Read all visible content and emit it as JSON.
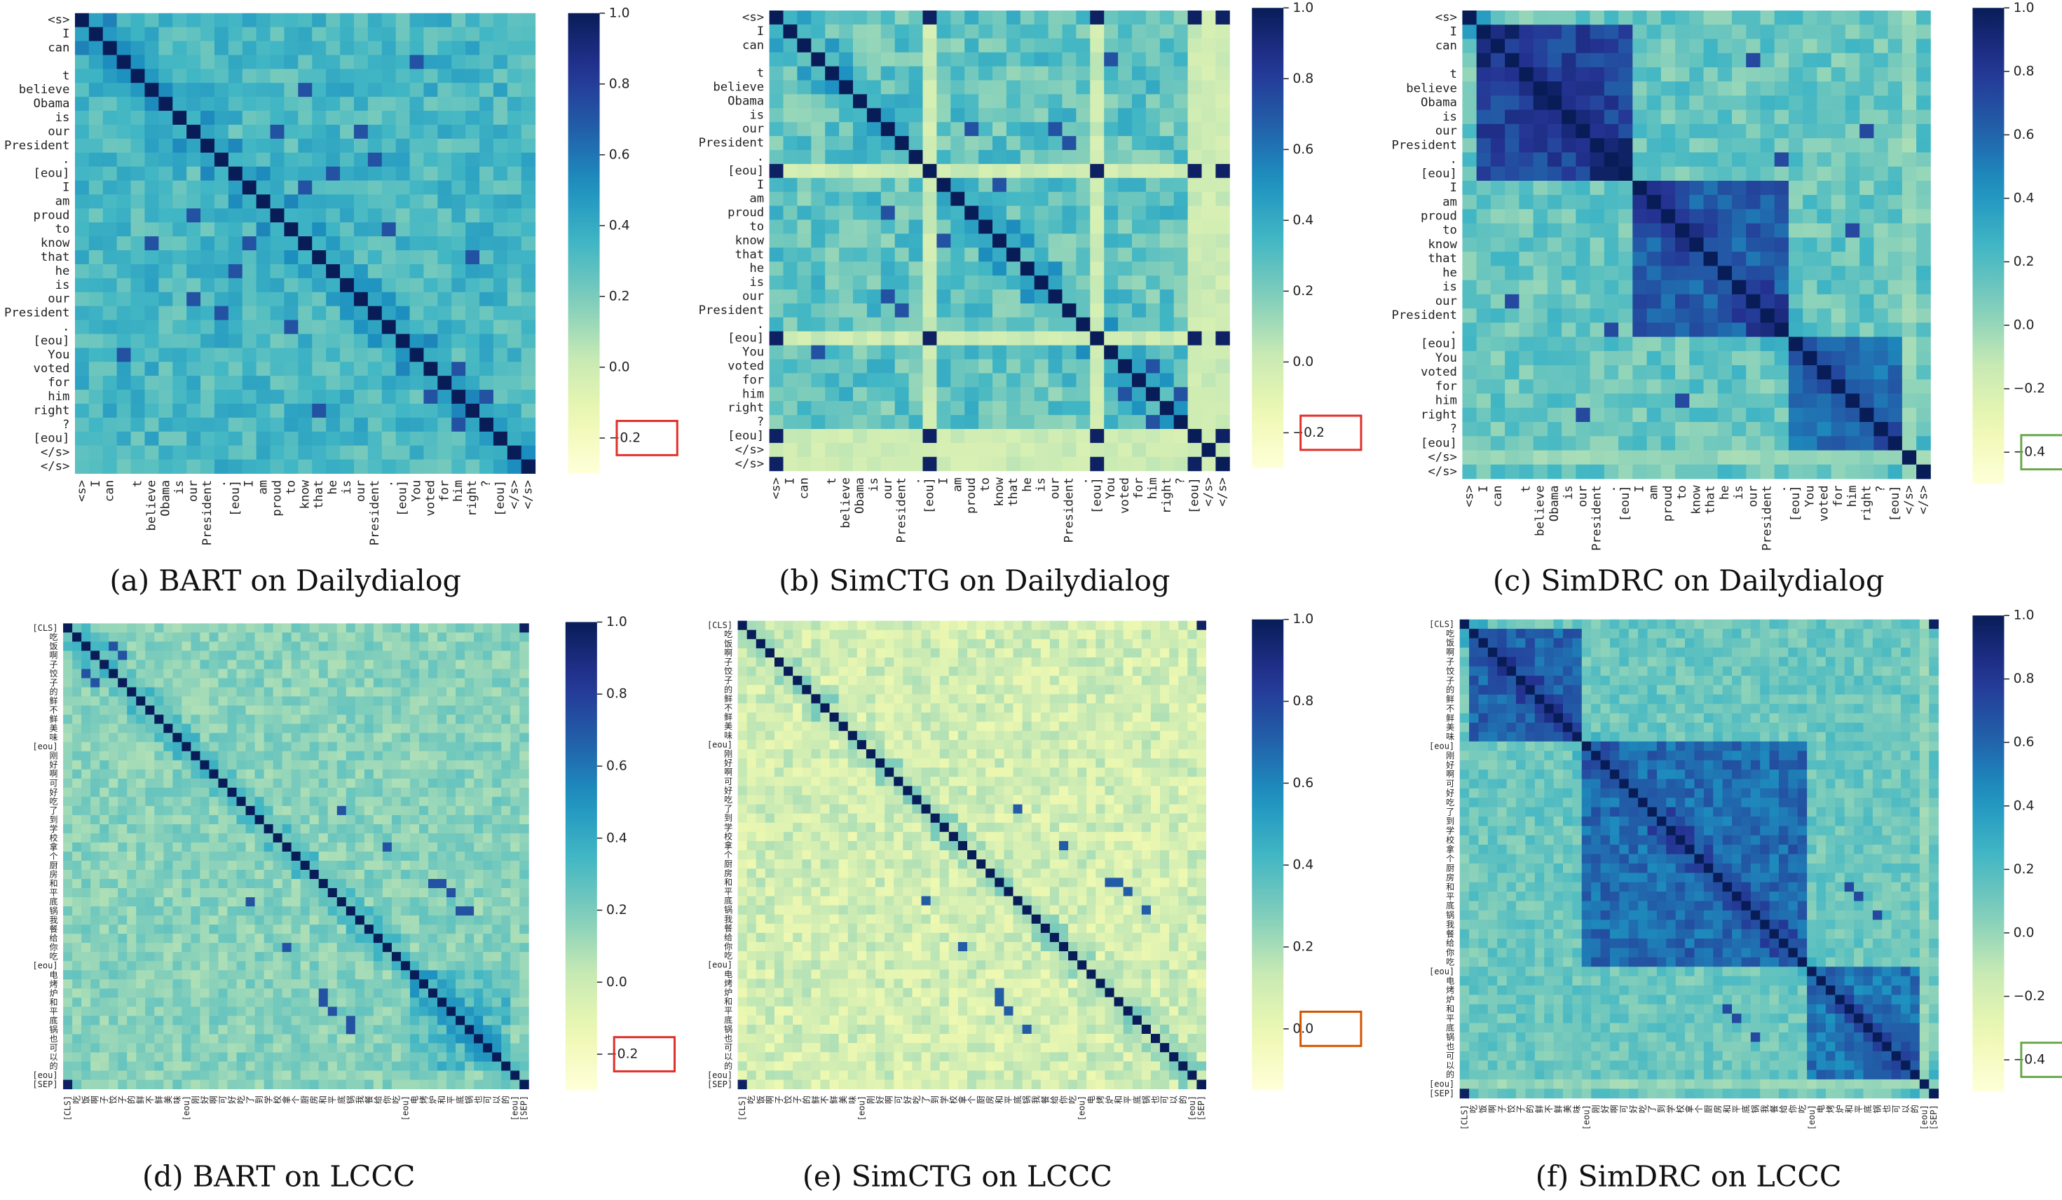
{
  "chart_data": [
    {
      "id": "a",
      "type": "heatmap",
      "caption": "(a) BART on Dailydialog",
      "tokens": [
        "<s>",
        "I",
        "can",
        "",
        "t",
        "believe",
        "Obama",
        "is",
        "our",
        "President",
        ".",
        "[eou]",
        "I",
        "am",
        "proud",
        "to",
        "know",
        "that",
        "he",
        "is",
        "our",
        "President",
        ".",
        "[eou]",
        "You",
        "voted",
        "for",
        "him",
        "right",
        "?",
        "[eou]",
        "</s>",
        "</s>"
      ],
      "colorbar": {
        "vmin": -0.3,
        "vmax": 1.0,
        "ticks": [
          1.0,
          0.8,
          0.6,
          0.4,
          0.2,
          0.0,
          -0.2
        ],
        "tick_labels": [
          "1.0",
          "0.8",
          "0.6",
          "0.4",
          "0.2",
          "0.0",
          "−0.2"
        ],
        "highlighted_tick": "−0.2",
        "highlight_color": "#e0302a"
      },
      "style": {
        "base": 0.33,
        "spread": 0.12,
        "seps": [],
        "seps_hi": [],
        "blocks": [],
        "offdiag": [
          [
            14,
            8
          ],
          [
            16,
            12
          ],
          [
            18,
            11
          ],
          [
            25,
            27
          ],
          [
            28,
            17
          ],
          [
            27,
            29
          ],
          [
            8,
            20
          ],
          [
            10,
            21
          ],
          [
            3,
            24
          ],
          [
            5,
            16
          ],
          [
            22,
            15
          ]
        ]
      }
    },
    {
      "id": "b",
      "type": "heatmap",
      "caption": "(b) SimCTG on Dailydialog",
      "tokens": [
        "<s>",
        "I",
        "can",
        "",
        "t",
        "believe",
        "Obama",
        "is",
        "our",
        "President",
        ".",
        "[eou]",
        "I",
        "am",
        "proud",
        "to",
        "know",
        "that",
        "he",
        "is",
        "our",
        "President",
        ".",
        "[eou]",
        "You",
        "voted",
        "for",
        "him",
        "right",
        "?",
        "[eou]",
        "</s>",
        "</s>"
      ],
      "colorbar": {
        "vmin": -0.3,
        "vmax": 1.0,
        "ticks": [
          1.0,
          0.8,
          0.6,
          0.4,
          0.2,
          0.0,
          -0.2
        ],
        "tick_labels": [
          "1.0",
          "0.8",
          "0.6",
          "0.4",
          "0.2",
          "0.0",
          "−0.2"
        ],
        "highlighted_tick": "−0.2",
        "highlight_color": "#e0302a"
      },
      "style": {
        "base": 0.27,
        "spread": 0.14,
        "seps": [
          11,
          23,
          30,
          31,
          32
        ],
        "seps_hi": [
          0,
          11,
          23,
          30,
          32
        ],
        "blocks": [],
        "offdiag": [
          [
            14,
            8
          ],
          [
            16,
            12
          ],
          [
            18,
            11
          ],
          [
            25,
            27
          ],
          [
            27,
            29
          ],
          [
            8,
            20
          ],
          [
            9,
            21
          ],
          [
            3,
            24
          ]
        ]
      }
    },
    {
      "id": "c",
      "type": "heatmap",
      "caption": "(c) SimDRC on Dailydialog",
      "tokens": [
        "<s>",
        "I",
        "can",
        "",
        "t",
        "believe",
        "Obama",
        "is",
        "our",
        "President",
        ".",
        "[eou]",
        "I",
        "am",
        "proud",
        "to",
        "know",
        "that",
        "he",
        "is",
        "our",
        "President",
        ".",
        "[eou]",
        "You",
        "voted",
        "for",
        "him",
        "right",
        "?",
        "[eou]",
        "</s>",
        "</s>"
      ],
      "colorbar": {
        "vmin": -0.5,
        "vmax": 1.0,
        "ticks": [
          1.0,
          0.8,
          0.6,
          0.4,
          0.2,
          0.0,
          -0.2,
          -0.4
        ],
        "tick_labels": [
          "1.0",
          "0.8",
          "0.6",
          "0.4",
          "0.2",
          "0.0",
          "−0.2",
          "−0.4"
        ],
        "highlighted_tick": "−0.4",
        "highlight_color": "#6aa84f"
      },
      "style": {
        "base": 0.13,
        "spread": 0.13,
        "seps": [
          31
        ],
        "seps_hi": [
          32
        ],
        "blocks": [
          [
            1,
            11,
            0.74
          ],
          [
            12,
            22,
            0.64
          ],
          [
            23,
            30,
            0.54
          ]
        ],
        "offdiag": [
          [
            3,
            20
          ],
          [
            15,
            27
          ],
          [
            8,
            28
          ],
          [
            10,
            22
          ]
        ]
      }
    },
    {
      "id": "d",
      "type": "heatmap",
      "caption": "(d) BART on LCCC",
      "tokens": [
        "[CLS]",
        "吃",
        "饭",
        "啊",
        "子",
        "饺",
        "子",
        "的",
        "鲜",
        "不",
        "鲜",
        "美",
        "味",
        "[eou]",
        "刚",
        "好",
        "啊",
        "可",
        "好",
        "吃",
        "了",
        "到",
        "学",
        "校",
        "拿",
        "个",
        "厨",
        "房",
        "和",
        "平",
        "底",
        "锅",
        "我",
        "餐",
        "给",
        "你",
        "吃",
        "[eou]",
        "电",
        "烤",
        "炉",
        "和",
        "平",
        "底",
        "锅",
        "也",
        "可",
        "以",
        "的",
        "[eou]",
        "[SEP]"
      ],
      "colorbar": {
        "vmin": -0.3,
        "vmax": 1.0,
        "ticks": [
          1.0,
          0.8,
          0.6,
          0.4,
          0.2,
          0.0,
          -0.2
        ],
        "tick_labels": [
          "1.0",
          "0.8",
          "0.6",
          "0.4",
          "0.2",
          "0.0",
          "−0.2"
        ],
        "highlighted_tick": "−0.2",
        "highlight_color": "#e0302a"
      },
      "style": {
        "base": 0.17,
        "spread": 0.09,
        "seps": [],
        "seps_hi": [
          0,
          50
        ],
        "blocks": [
          [
            38,
            48,
            0.3
          ]
        ],
        "offdiag": [
          [
            28,
            41
          ],
          [
            29,
            42
          ],
          [
            31,
            44
          ],
          [
            24,
            35
          ],
          [
            20,
            30
          ],
          [
            2,
            5
          ],
          [
            3,
            6
          ],
          [
            40,
            28
          ],
          [
            42,
            29
          ],
          [
            43,
            31
          ]
        ]
      }
    },
    {
      "id": "e",
      "type": "heatmap",
      "caption": "(e) SimCTG on LCCC",
      "tokens": [
        "[CLS]",
        "吃",
        "饭",
        "啊",
        "子",
        "饺",
        "子",
        "的",
        "鲜",
        "不",
        "鲜",
        "美",
        "味",
        "[eou]",
        "刚",
        "好",
        "啊",
        "可",
        "好",
        "吃",
        "了",
        "到",
        "学",
        "校",
        "拿",
        "个",
        "厨",
        "房",
        "和",
        "平",
        "底",
        "锅",
        "我",
        "餐",
        "给",
        "你",
        "吃",
        "[eou]",
        "电",
        "烤",
        "炉",
        "和",
        "平",
        "底",
        "锅",
        "也",
        "可",
        "以",
        "的",
        "[eou]",
        "[SEP]"
      ],
      "colorbar": {
        "vmin": -0.15,
        "vmax": 1.0,
        "ticks": [
          1.0,
          0.8,
          0.6,
          0.4,
          0.2,
          0.0
        ],
        "tick_labels": [
          "1.0",
          "0.8",
          "0.6",
          "0.4",
          "0.2",
          "0.0"
        ],
        "highlighted_tick": "0.0",
        "highlight_color": "#d35400"
      },
      "style": {
        "base": 0.09,
        "spread": 0.1,
        "seps": [],
        "seps_hi": [
          0,
          50
        ],
        "blocks": [],
        "offdiag": [
          [
            28,
            41
          ],
          [
            29,
            42
          ],
          [
            31,
            44
          ],
          [
            24,
            35
          ],
          [
            20,
            30
          ],
          [
            40,
            28
          ],
          [
            42,
            29
          ]
        ]
      }
    },
    {
      "id": "f",
      "type": "heatmap",
      "caption": "(f) SimDRC on LCCC",
      "tokens": [
        "[CLS]",
        "吃",
        "饭",
        "啊",
        "子",
        "饺",
        "子",
        "的",
        "鲜",
        "不",
        "鲜",
        "美",
        "味",
        "[eou]",
        "刚",
        "好",
        "啊",
        "可",
        "好",
        "吃",
        "了",
        "到",
        "学",
        "校",
        "拿",
        "个",
        "厨",
        "房",
        "和",
        "平",
        "底",
        "锅",
        "我",
        "餐",
        "给",
        "你",
        "吃",
        "[eou]",
        "电",
        "烤",
        "炉",
        "和",
        "平",
        "底",
        "锅",
        "也",
        "可",
        "以",
        "的",
        "[eou]",
        "[SEP]"
      ],
      "colorbar": {
        "vmin": -0.5,
        "vmax": 1.0,
        "ticks": [
          1.0,
          0.8,
          0.6,
          0.4,
          0.2,
          0.0,
          -0.2,
          -0.4
        ],
        "tick_labels": [
          "1.0",
          "0.8",
          "0.6",
          "0.4",
          "0.2",
          "0.0",
          "−0.2",
          "−0.4"
        ],
        "highlighted_tick": "−0.4",
        "highlight_color": "#6aa84f"
      },
      "style": {
        "base": 0.12,
        "spread": 0.1,
        "seps": [
          49
        ],
        "seps_hi": [
          0,
          50
        ],
        "blocks": [
          [
            1,
            12,
            0.62
          ],
          [
            13,
            36,
            0.58
          ],
          [
            37,
            48,
            0.54
          ]
        ],
        "offdiag": [
          [
            28,
            41
          ],
          [
            29,
            42
          ],
          [
            31,
            44
          ],
          [
            24,
            35
          ],
          [
            3,
            6
          ]
        ]
      }
    }
  ]
}
